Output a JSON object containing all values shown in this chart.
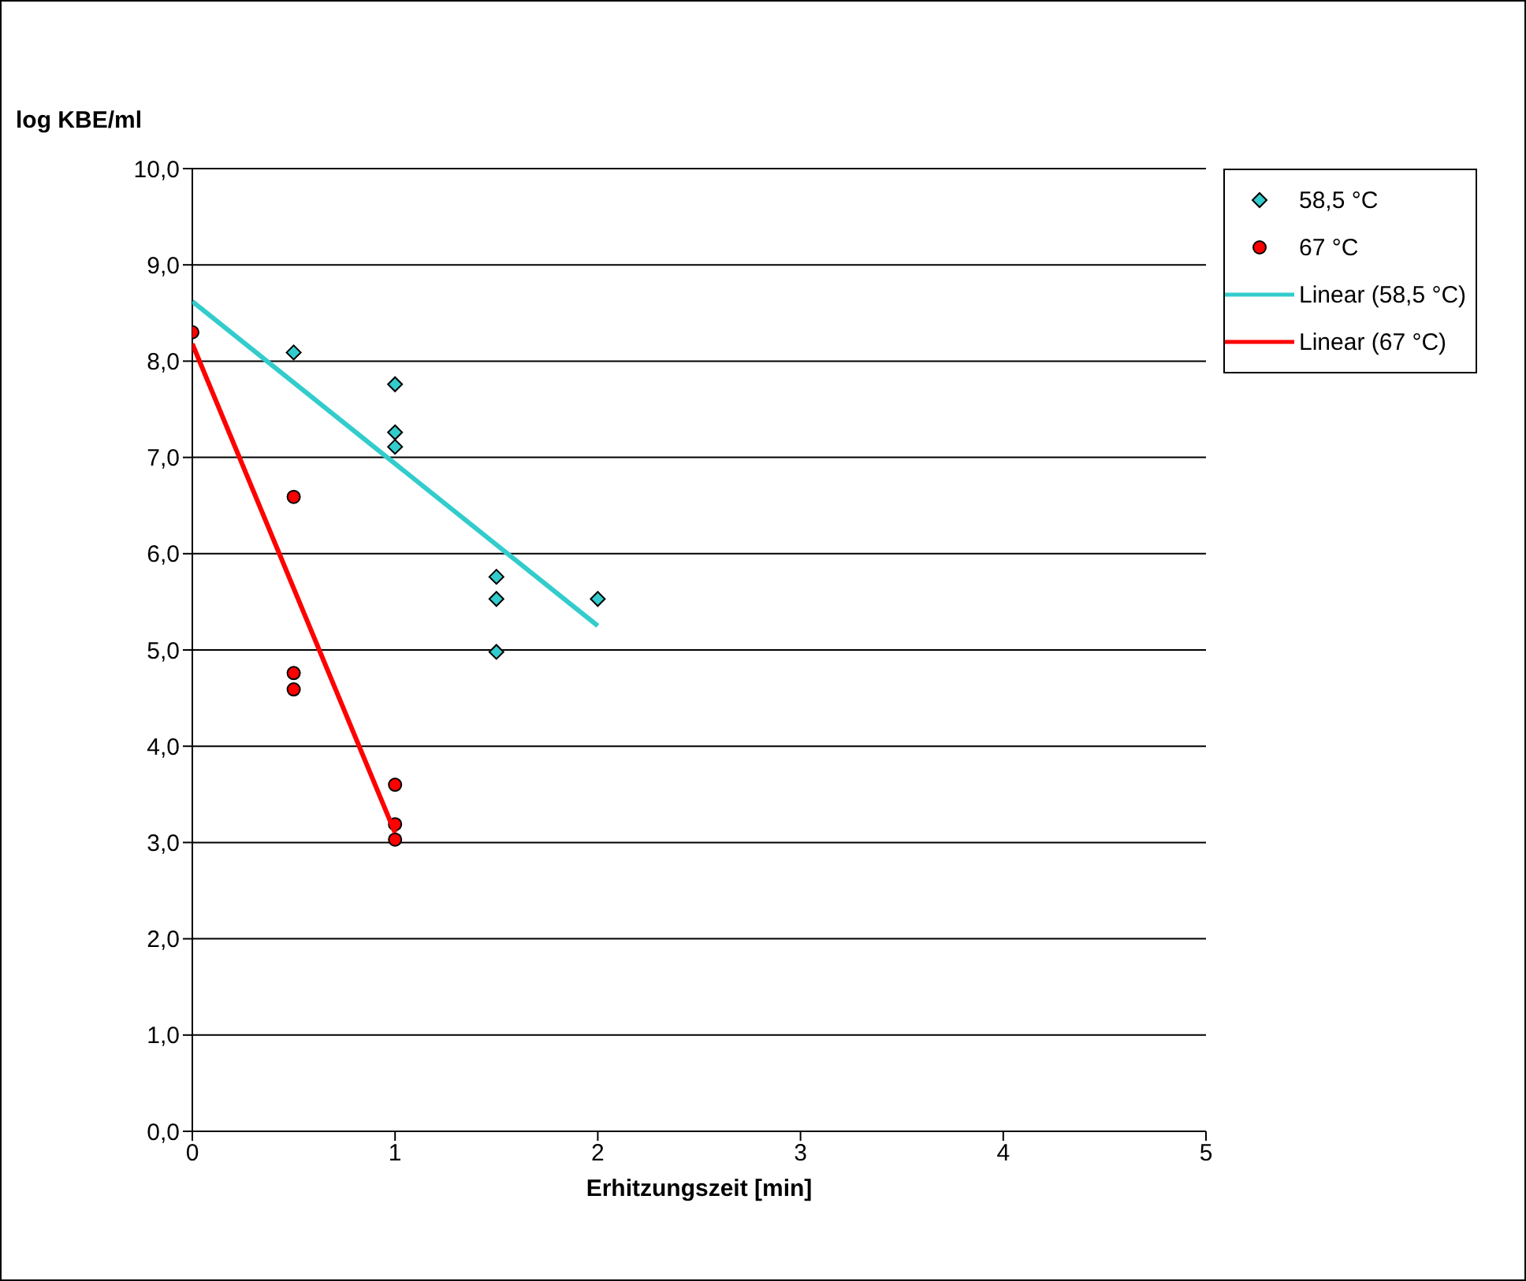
{
  "chart_data": {
    "type": "scatter",
    "ylabel": "log KBE/ml",
    "xlabel": "Erhitzungszeit [min]",
    "xlim": [
      0,
      5
    ],
    "xticks": [
      0,
      1,
      2,
      3,
      4,
      5
    ],
    "ylim": [
      0,
      10
    ],
    "yticks": [
      {
        "value": 0,
        "label": "0,0"
      },
      {
        "value": 1,
        "label": "1,0"
      },
      {
        "value": 2,
        "label": "2,0"
      },
      {
        "value": 3,
        "label": "3,0"
      },
      {
        "value": 4,
        "label": "4,0"
      },
      {
        "value": 5,
        "label": "5,0"
      },
      {
        "value": 6,
        "label": "6,0"
      },
      {
        "value": 7,
        "label": "7,0"
      },
      {
        "value": 8,
        "label": "8,0"
      },
      {
        "value": 9,
        "label": "9,0"
      },
      {
        "value": 10,
        "label": "10,0"
      }
    ],
    "grid": "y",
    "legend": "right",
    "series": [
      {
        "name": "58,5 °C",
        "type": "scatter",
        "marker": "diamond",
        "color": "#33cccc",
        "x": [
          0.5,
          1,
          1,
          1,
          1.5,
          1.5,
          1.5,
          2
        ],
        "values": [
          8.09,
          7.76,
          7.26,
          7.11,
          5.76,
          5.53,
          4.98,
          5.53
        ]
      },
      {
        "name": "67 °C",
        "type": "scatter",
        "marker": "circle",
        "color": "#ff0000",
        "x": [
          0,
          0.5,
          0.5,
          0.5,
          1,
          1,
          1
        ],
        "values": [
          8.3,
          6.59,
          4.76,
          4.59,
          3.6,
          3.19,
          3.03
        ]
      },
      {
        "name": "Linear (58,5 °C)",
        "type": "line",
        "marker": "none",
        "color": "#33cccc",
        "x": [
          0,
          2
        ],
        "values": [
          8.62,
          5.25
        ]
      },
      {
        "name": "Linear (67 °C)",
        "type": "line",
        "marker": "none",
        "color": "#ff0000",
        "x": [
          0,
          1
        ],
        "values": [
          8.18,
          3.1
        ]
      }
    ]
  }
}
